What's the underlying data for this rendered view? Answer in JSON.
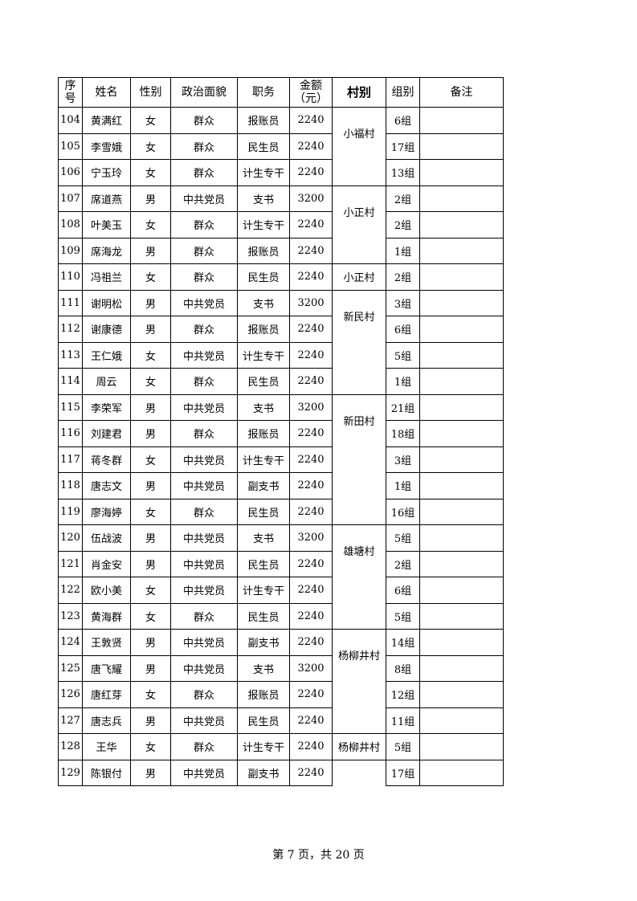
{
  "headers": [
    "序\n号",
    "姓名",
    "性别",
    "政治面貌",
    "职务",
    "金额\n（元）",
    "村别",
    "组别",
    "备注"
  ],
  "rows": [
    {
      "no": "104",
      "name": "黄满红",
      "gender": "女",
      "political": "群众",
      "duty": "报账员",
      "amount": "2240",
      "group": "6组",
      "remark": ""
    },
    {
      "no": "105",
      "name": "李雪娥",
      "gender": "女",
      "political": "群众",
      "duty": "民生员",
      "amount": "2240",
      "group": "17组",
      "remark": ""
    },
    {
      "no": "106",
      "name": "宁玉玲",
      "gender": "女",
      "political": "群众",
      "duty": "计生专干",
      "amount": "2240",
      "group": "13组",
      "remark": ""
    },
    {
      "no": "107",
      "name": "席道燕",
      "gender": "男",
      "political": "中共党员",
      "duty": "支书",
      "amount": "3200",
      "group": "2组",
      "remark": ""
    },
    {
      "no": "108",
      "name": "叶美玉",
      "gender": "女",
      "political": "群众",
      "duty": "计生专干",
      "amount": "2240",
      "group": "2组",
      "remark": ""
    },
    {
      "no": "109",
      "name": "席海龙",
      "gender": "男",
      "political": "群众",
      "duty": "报账员",
      "amount": "2240",
      "group": "1组",
      "remark": ""
    },
    {
      "no": "110",
      "name": "冯祖兰",
      "gender": "女",
      "political": "群众",
      "duty": "民生员",
      "amount": "2240",
      "group": "2组",
      "remark": ""
    },
    {
      "no": "111",
      "name": "谢明松",
      "gender": "男",
      "political": "中共党员",
      "duty": "支书",
      "amount": "3200",
      "group": "3组",
      "remark": ""
    },
    {
      "no": "112",
      "name": "谢康德",
      "gender": "男",
      "political": "群众",
      "duty": "报账员",
      "amount": "2240",
      "group": "6组",
      "remark": ""
    },
    {
      "no": "113",
      "name": "王仁娥",
      "gender": "女",
      "political": "中共党员",
      "duty": "计生专干",
      "amount": "2240",
      "group": "5组",
      "remark": ""
    },
    {
      "no": "114",
      "name": "周云",
      "gender": "女",
      "political": "群众",
      "duty": "民生员",
      "amount": "2240",
      "group": "1组",
      "remark": ""
    },
    {
      "no": "115",
      "name": "李荣军",
      "gender": "男",
      "political": "中共党员",
      "duty": "支书",
      "amount": "3200",
      "group": "21组",
      "remark": ""
    },
    {
      "no": "116",
      "name": "刘建君",
      "gender": "男",
      "political": "群众",
      "duty": "报账员",
      "amount": "2240",
      "group": "18组",
      "remark": ""
    },
    {
      "no": "117",
      "name": "蒋冬群",
      "gender": "女",
      "political": "中共党员",
      "duty": "计生专干",
      "amount": "2240",
      "group": "3组",
      "remark": ""
    },
    {
      "no": "118",
      "name": "唐志文",
      "gender": "男",
      "political": "中共党员",
      "duty": "副支书",
      "amount": "2240",
      "group": "1组",
      "remark": ""
    },
    {
      "no": "119",
      "name": "廖海婷",
      "gender": "女",
      "political": "群众",
      "duty": "民生员",
      "amount": "2240",
      "group": "16组",
      "remark": ""
    },
    {
      "no": "120",
      "name": "伍战波",
      "gender": "男",
      "political": "中共党员",
      "duty": "支书",
      "amount": "3200",
      "group": "5组",
      "remark": ""
    },
    {
      "no": "121",
      "name": "肖金安",
      "gender": "男",
      "political": "中共党员",
      "duty": "民生员",
      "amount": "2240",
      "group": "2组",
      "remark": ""
    },
    {
      "no": "122",
      "name": "欧小美",
      "gender": "女",
      "political": "中共党员",
      "duty": "计生专干",
      "amount": "2240",
      "group": "6组",
      "remark": ""
    },
    {
      "no": "123",
      "name": "黄海群",
      "gender": "女",
      "political": "群众",
      "duty": "民生员",
      "amount": "2240",
      "group": "5组",
      "remark": ""
    },
    {
      "no": "124",
      "name": "王敦贤",
      "gender": "男",
      "political": "中共党员",
      "duty": "副支书",
      "amount": "2240",
      "group": "14组",
      "remark": ""
    },
    {
      "no": "125",
      "name": "唐飞耀",
      "gender": "男",
      "political": "中共党员",
      "duty": "支书",
      "amount": "3200",
      "group": "8组",
      "remark": ""
    },
    {
      "no": "126",
      "name": "唐红芽",
      "gender": "女",
      "political": "群众",
      "duty": "报账员",
      "amount": "2240",
      "group": "12组",
      "remark": ""
    },
    {
      "no": "127",
      "name": "唐志兵",
      "gender": "男",
      "political": "中共党员",
      "duty": "民生员",
      "amount": "2240",
      "group": "11组",
      "remark": ""
    },
    {
      "no": "128",
      "name": "王华",
      "gender": "女",
      "political": "群众",
      "duty": "计生专干",
      "amount": "2240",
      "group": "5组",
      "remark": ""
    },
    {
      "no": "129",
      "name": "陈银付",
      "gender": "男",
      "political": "中共党员",
      "duty": "副支书",
      "amount": "2240",
      "group": "17组",
      "remark": ""
    }
  ],
  "villages": [
    {
      "name": "小福村",
      "span": 3
    },
    {
      "name": "小正村",
      "span": 3
    },
    {
      "name": "小正村",
      "span": 1
    },
    {
      "name": "新民村",
      "span": 4
    },
    {
      "name": "新田村",
      "span": 5
    },
    {
      "name": "雄塘村",
      "span": 4
    },
    {
      "name": "杨柳井村",
      "span": 4
    },
    {
      "name": "杨柳井村",
      "span": 1
    },
    {
      "name": "",
      "span": 1
    }
  ],
  "footer": "第 7 页，共 20 页"
}
